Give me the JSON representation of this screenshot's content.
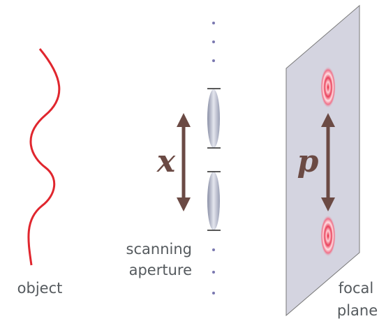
{
  "labels": {
    "object": "object",
    "aperture": [
      "scanning",
      "aperture"
    ],
    "x": "x",
    "p": "p",
    "focal_plane": [
      "focal",
      "plane"
    ]
  }
}
